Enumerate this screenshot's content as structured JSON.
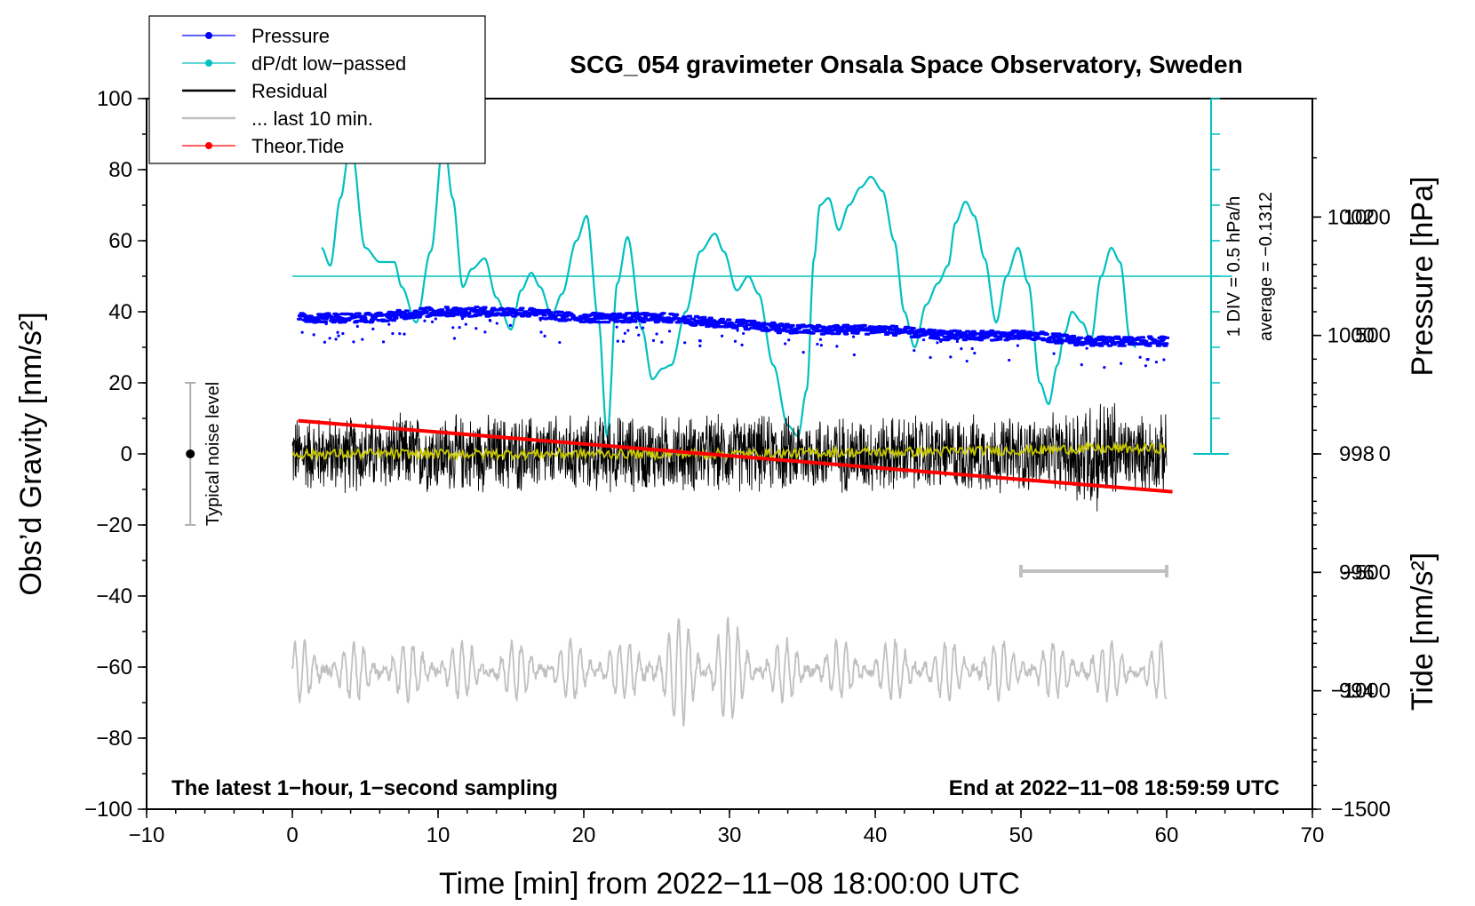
{
  "chart_data": {
    "type": "line",
    "title": "SCG_054 gravimeter Onsala Space Observatory, Sweden",
    "xlabel": "Time [min] from 2022−11−08 18:00:00 UTC",
    "ylabel_left": "Obs’d Gravity [nm/s²]",
    "ylabel_right_pressure": "Pressure [hPa]",
    "ylabel_right_tide": "Tide [nm/s²]",
    "xlim": [
      -10,
      70
    ],
    "ylim_gravity": [
      -100,
      100
    ],
    "ylim_pressure": [
      992,
      1004
    ],
    "ylim_tide": [
      -1500,
      1500
    ],
    "x_ticks": [
      "−10",
      "0",
      "10",
      "20",
      "30",
      "40",
      "50",
      "60",
      "70"
    ],
    "y_ticks_gravity": [
      "−100",
      "−80",
      "−60",
      "−40",
      "−20",
      "0",
      "20",
      "40",
      "60",
      "80",
      "100"
    ],
    "y_ticks_pressure": [
      "994",
      "996",
      "998",
      "1000",
      "1002"
    ],
    "y_ticks_tide": [
      "−1500",
      "−1000",
      "−500",
      "0",
      "500",
      "1000"
    ],
    "legend": [
      {
        "label": "Pressure",
        "color": "#0000ff",
        "marker": true
      },
      {
        "label": "dP/dt low−passed",
        "color": "#00c0c0",
        "marker": true
      },
      {
        "label": "Residual",
        "color": "#000000",
        "marker": false
      },
      {
        "label": "... last 10 min.",
        "color": "#c0c0c0",
        "marker": false
      },
      {
        "label": "Theor.Tide",
        "color": "#ff0000",
        "marker": true
      }
    ],
    "annotations": {
      "subtitle_left": "The latest 1−hour, 1−second sampling",
      "subtitle_right": "End at 2022−11−08 18:59:59 UTC",
      "noise_label": "Typical noise level",
      "dpdt_scale": "1 DIV = 0.5 hPa/h",
      "dpdt_average": "average = −0.1312"
    },
    "noise_bar": {
      "x": -7,
      "center": 0,
      "half_range": 20
    },
    "scale_bar_x": [
      50,
      60
    ],
    "series": [
      {
        "name": "Pressure",
        "axis": "pressure",
        "color": "#0000ff",
        "x": [
          0.5,
          5,
          10,
          15,
          20,
          25,
          30,
          35,
          40,
          45,
          50,
          55,
          60
        ],
        "values": [
          1000.3,
          1000.3,
          1000.4,
          1000.4,
          1000.3,
          1000.3,
          1000.2,
          1000.1,
          1000.1,
          1000.0,
          1000.0,
          999.9,
          999.9
        ]
      },
      {
        "name": "dP/dt low−passed",
        "axis": "gravity",
        "color": "#00c0c0",
        "zero_line": 50,
        "x": [
          2,
          2.6,
          3.3,
          4,
          5,
          6,
          7,
          7.5,
          8.5,
          9.5,
          10.4,
          11,
          11.7,
          12.3,
          13.2,
          14,
          15,
          15.7,
          16.4,
          17,
          17.8,
          18.5,
          19.5,
          20.2,
          21,
          21.6,
          22.3,
          23,
          24,
          24.7,
          25.4,
          26,
          27,
          28,
          29,
          29.6,
          30.5,
          31.3,
          32,
          33,
          34,
          34.7,
          35.3,
          35.8,
          36.2,
          36.8,
          37.5,
          38.2,
          39,
          39.7,
          40.5,
          41.3,
          42,
          42.7,
          43.5,
          44.3,
          45,
          45.5,
          46.2,
          46.8,
          47.5,
          48.3,
          49,
          49.8,
          50.5,
          51.3,
          51.9,
          52.5,
          53,
          53.5,
          54.2,
          54.8,
          55.5,
          56.2,
          56.8,
          57.5,
          57.9
        ],
        "values": [
          58,
          53,
          72,
          88,
          58,
          54,
          54,
          47,
          37,
          57,
          89,
          72,
          47,
          52,
          55,
          44,
          35,
          46,
          51,
          47,
          39,
          45,
          60,
          67,
          38,
          5,
          48,
          61,
          35,
          21,
          24,
          25,
          40,
          57,
          62,
          57,
          46,
          50,
          45,
          25,
          8,
          5,
          18,
          55,
          70,
          72,
          63,
          70,
          75,
          78,
          74,
          60,
          40,
          30,
          42,
          48,
          53,
          65,
          71,
          67,
          55,
          37,
          50,
          58,
          48,
          20,
          14,
          25,
          34,
          40,
          37,
          32,
          50,
          58,
          54,
          32,
          30
        ]
      },
      {
        "name": "Residual",
        "axis": "gravity",
        "color": "#000000",
        "amplitude": 11,
        "x_start": 0,
        "x_end": 60
      },
      {
        "name": "Residual smoothed",
        "axis": "gravity",
        "color": "#c8c800",
        "x": [
          0,
          10,
          20,
          30,
          40,
          50,
          55,
          60
        ],
        "values": [
          0,
          0,
          0,
          0,
          0.5,
          1,
          1.5,
          1.5
        ]
      },
      {
        "name": "... last 10 min.",
        "axis": "gravity",
        "color": "#c0c0c0",
        "baseline": -61,
        "amplitude": 8,
        "x_start": 0,
        "x_end": 60
      },
      {
        "name": "Theor.Tide",
        "axis": "tide",
        "color": "#ff0000",
        "x": [
          0.4,
          60.4
        ],
        "values": [
          140,
          -160
        ]
      }
    ]
  }
}
